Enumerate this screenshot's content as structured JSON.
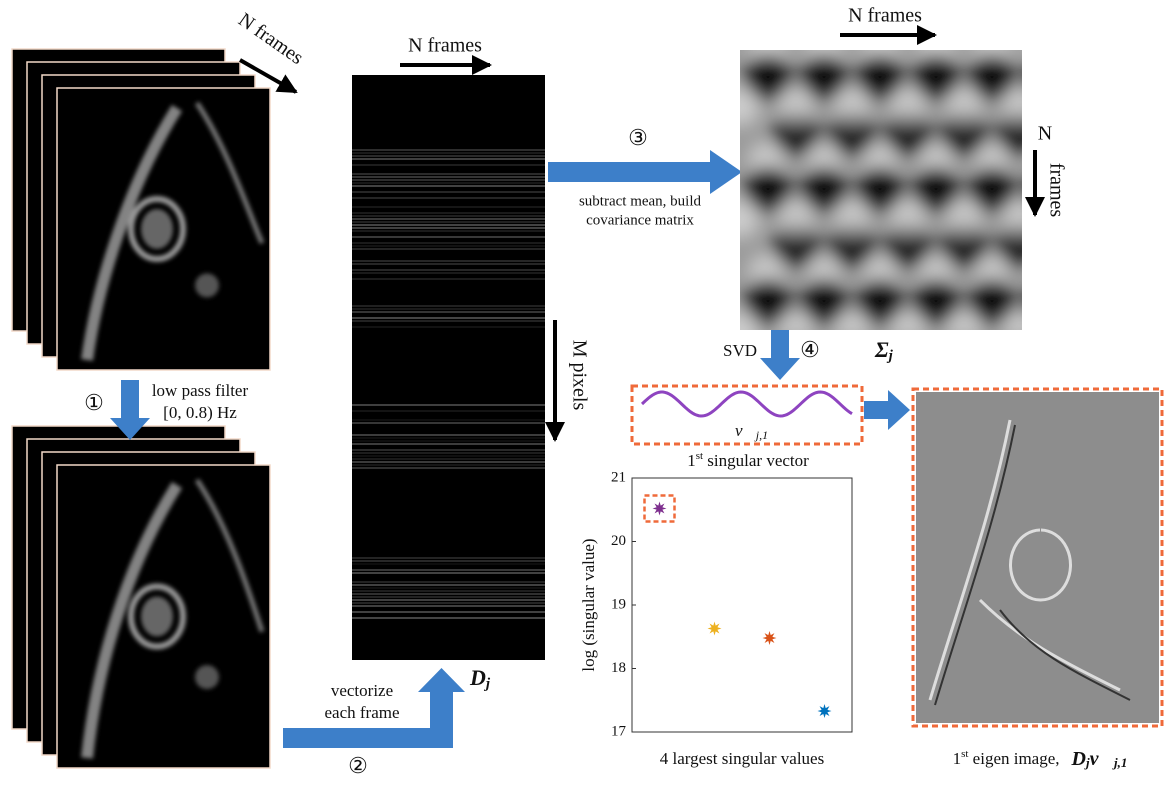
{
  "diagram": {
    "frames_top": "N frames",
    "frames_matrix": "N frames",
    "frames_cov": "N frames",
    "frames_cov_side": "N",
    "frames_cov_side2": "frames",
    "pixels": "M pixels",
    "step1": "①",
    "step2": "②",
    "step3": "③",
    "step4": "④",
    "filter_line1": "low pass filter",
    "filter_line2": "[0, 0.8) Hz",
    "vectorize_line1": "vectorize",
    "vectorize_line2": "each frame",
    "cov_line1": "subtract mean, build",
    "cov_line2": "covariance matrix",
    "svd": "SVD",
    "d_label": {
      "base": "D",
      "sub": "j"
    },
    "sigma_label": {
      "base": "Σ",
      "sub": "j"
    },
    "vector_label": {
      "base": "v⃗",
      "sub": "j,1"
    },
    "singular_vector_caption": {
      "num": "1",
      "sup": "st",
      "rest": " singular vector"
    },
    "eigen_caption": {
      "num": "1",
      "sup": "st",
      "rest": " eigen image,",
      "d": "D",
      "dsub": "j",
      "v": "v⃗",
      "vsub": "j,1"
    }
  },
  "chart_data": {
    "type": "scatter",
    "x_label": "4 largest singular values",
    "y_label": "log (singular value)",
    "x": [
      1,
      2,
      3,
      4
    ],
    "values": [
      20.52,
      18.63,
      18.48,
      17.33
    ],
    "colors": [
      "#7e2f8e",
      "#edb120",
      "#d95319",
      "#0072bd"
    ],
    "xlim": [
      0.5,
      4.5
    ],
    "ylim": [
      17,
      21
    ],
    "yticks": [
      17,
      18,
      19,
      20,
      21
    ]
  }
}
